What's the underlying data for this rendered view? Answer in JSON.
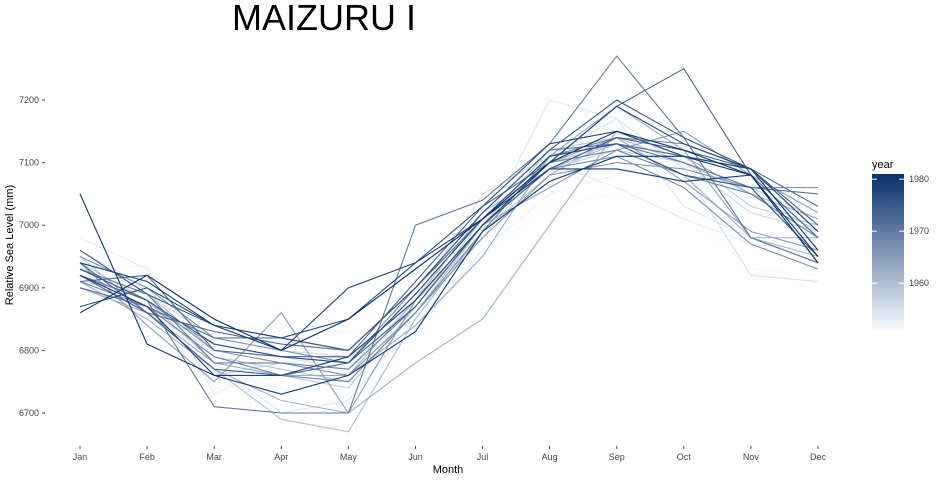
{
  "chart_data": {
    "type": "line",
    "title": "MAIZURU I",
    "xlabel": "Month",
    "ylabel": "Relative Sea Level (mm)",
    "categories": [
      "Jan",
      "Feb",
      "Mar",
      "Apr",
      "May",
      "Jun",
      "Jul",
      "Aug",
      "Sep",
      "Oct",
      "Nov",
      "Dec"
    ],
    "ylim": [
      6650,
      7270
    ],
    "yticks": [
      6700,
      6800,
      6900,
      7000,
      7100,
      7200
    ],
    "ytick_labels": [
      "6700",
      "6800",
      "6900",
      "7000",
      "7100",
      "7200"
    ],
    "grid": false,
    "legend": {
      "title": "year",
      "position": "right",
      "type": "colorbar",
      "range": [
        1951,
        1981
      ],
      "ticks": [
        1960,
        1970,
        1980
      ],
      "tick_labels": [
        "1960",
        "1970",
        "1980"
      ],
      "color_low": "#f7fbff",
      "color_high": "#08306b"
    },
    "series": [
      {
        "year": 1951,
        "values": [
          6900,
          6920,
          6850,
          6830,
          6830,
          6850,
          6950,
          7030,
          7050,
          7020,
          6930,
          6920
        ]
      },
      {
        "year": 1952,
        "values": [
          6930,
          6935,
          6740,
          6760,
          6750,
          6830,
          6960,
          7050,
          7080,
          7110,
          7050,
          7000
        ]
      },
      {
        "year": 1953,
        "values": [
          6980,
          6930,
          6730,
          6780,
          6790,
          6850,
          7000,
          7100,
          7060,
          7010,
          6970,
          6960
        ]
      },
      {
        "year": 1954,
        "values": [
          6960,
          6900,
          6780,
          6700,
          6720,
          6850,
          6990,
          7200,
          7170,
          7030,
          6980,
          6980
        ]
      },
      {
        "year": 1955,
        "values": [
          6920,
          6860,
          6800,
          6790,
          6770,
          6880,
          7050,
          7110,
          7170,
          7090,
          6920,
          6910
        ]
      },
      {
        "year": 1956,
        "values": [
          6910,
          6890,
          6820,
          6800,
          6790,
          6880,
          6980,
          7110,
          7140,
          7100,
          7020,
          6990
        ]
      },
      {
        "year": 1957,
        "values": [
          6920,
          6870,
          6760,
          6780,
          6760,
          6860,
          7000,
          7090,
          7120,
          7100,
          7060,
          7010
        ]
      },
      {
        "year": 1958,
        "values": [
          6940,
          6880,
          6780,
          6760,
          6740,
          6870,
          7010,
          7100,
          7130,
          7110,
          7030,
          7000
        ]
      },
      {
        "year": 1959,
        "values": [
          6920,
          6870,
          6790,
          6770,
          6750,
          6860,
          7000,
          7120,
          7140,
          7100,
          7050,
          6990
        ]
      },
      {
        "year": 1960,
        "values": [
          6950,
          6860,
          6770,
          6690,
          6670,
          6850,
          6990,
          7080,
          7140,
          7120,
          6980,
          6980
        ]
      },
      {
        "year": 1961,
        "values": [
          6930,
          6890,
          6800,
          6780,
          6760,
          6880,
          7020,
          7090,
          7130,
          7080,
          6980,
          6950
        ]
      },
      {
        "year": 1962,
        "values": [
          6910,
          6850,
          6770,
          6720,
          6700,
          6780,
          6850,
          7000,
          7150,
          7110,
          7050,
          7010
        ]
      },
      {
        "year": 1963,
        "values": [
          6900,
          6860,
          6780,
          6760,
          6760,
          6840,
          6950,
          7110,
          7190,
          7120,
          6980,
          6940
        ]
      },
      {
        "year": 1964,
        "values": [
          6920,
          6870,
          6810,
          6790,
          6780,
          6890,
          7010,
          7100,
          7140,
          7070,
          6990,
          6960
        ]
      },
      {
        "year": 1965,
        "values": [
          6940,
          6840,
          6750,
          6860,
          6700,
          6880,
          7000,
          7060,
          7120,
          7150,
          7080,
          7020
        ]
      },
      {
        "year": 1966,
        "values": [
          6920,
          6880,
          6800,
          6780,
          6760,
          6860,
          6980,
          7080,
          7100,
          7090,
          7060,
          7060
        ]
      },
      {
        "year": 1967,
        "values": [
          6950,
          6900,
          6820,
          6800,
          6780,
          6900,
          7010,
          7090,
          7110,
          7060,
          6970,
          6930
        ]
      },
      {
        "year": 1968,
        "values": [
          6910,
          6870,
          6790,
          6760,
          6750,
          6860,
          6990,
          7110,
          7140,
          7130,
          7090,
          6990
        ]
      },
      {
        "year": 1969,
        "values": [
          6930,
          6890,
          6780,
          6780,
          6770,
          6870,
          7000,
          7100,
          7120,
          7080,
          7050,
          6980
        ]
      },
      {
        "year": 1970,
        "values": [
          6920,
          6880,
          6710,
          6700,
          6700,
          7000,
          7040,
          7130,
          7270,
          7140,
          6980,
          6940
        ]
      },
      {
        "year": 1971,
        "values": [
          6900,
          6870,
          6820,
          6820,
          6800,
          6900,
          7010,
          7110,
          7130,
          7100,
          7060,
          7050
        ]
      },
      {
        "year": 1972,
        "values": [
          6940,
          6860,
          6830,
          6810,
          6800,
          6900,
          7020,
          7120,
          7130,
          7110,
          7090,
          7030
        ]
      },
      {
        "year": 1973,
        "values": [
          6910,
          6920,
          6800,
          6790,
          6790,
          6910,
          7030,
          7100,
          7190,
          7250,
          7080,
          6980
        ]
      },
      {
        "year": 1974,
        "values": [
          6920,
          6860,
          6770,
          6760,
          6780,
          6870,
          7000,
          7090,
          7140,
          7120,
          7090,
          7000
        ]
      },
      {
        "year": 1975,
        "values": [
          6960,
          6890,
          6840,
          6820,
          6800,
          6900,
          7020,
          7120,
          7200,
          7140,
          7090,
          6960
        ]
      },
      {
        "year": 1976,
        "values": [
          6930,
          6880,
          6810,
          6790,
          6780,
          6890,
          7010,
          7110,
          7130,
          7080,
          7060,
          6950
        ]
      },
      {
        "year": 1977,
        "values": [
          6870,
          6900,
          6840,
          6820,
          6850,
          6940,
          7030,
          7130,
          7150,
          7110,
          7090,
          6990
        ]
      },
      {
        "year": 1978,
        "values": [
          6920,
          6870,
          6760,
          6760,
          6790,
          6880,
          7000,
          7100,
          7190,
          7130,
          7090,
          6960
        ]
      },
      {
        "year": 1979,
        "values": [
          6940,
          6910,
          6840,
          6800,
          6900,
          6940,
          7010,
          7090,
          7090,
          7070,
          7080,
          6940
        ]
      },
      {
        "year": 1980,
        "values": [
          7050,
          6810,
          6760,
          6730,
          6760,
          6830,
          6990,
          7070,
          7110,
          7110,
          7080,
          6940
        ]
      },
      {
        "year": 1981,
        "values": [
          6860,
          6920,
          6850,
          6800,
          6850,
          6930,
          7010,
          7100,
          7150,
          7120,
          7080,
          6950
        ]
      }
    ]
  }
}
